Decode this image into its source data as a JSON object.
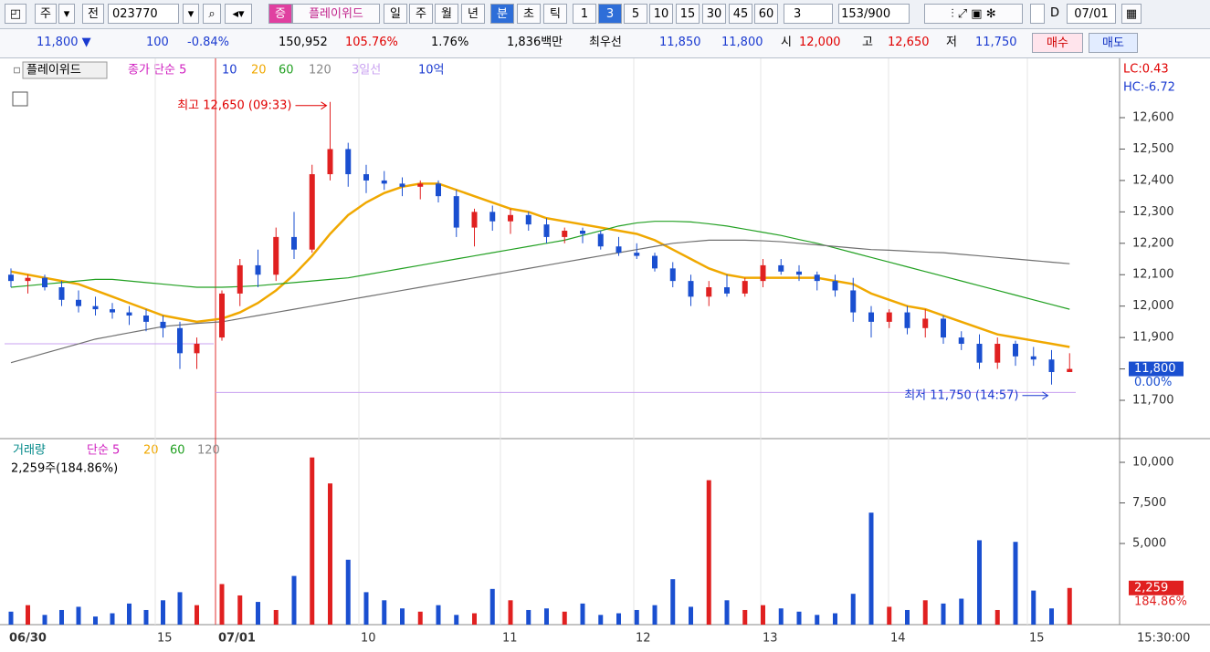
{
  "toolbar": {
    "market": "주",
    "mode": "전",
    "code": "023770",
    "badge": "증",
    "name": "플레이위드",
    "periods": [
      "일",
      "주",
      "월",
      "년",
      "분",
      "초",
      "틱"
    ],
    "intervals": [
      "1",
      "3",
      "5",
      "10",
      "15",
      "30",
      "45",
      "60"
    ],
    "interval_select": "3",
    "count": "153",
    "count_max": "/900",
    "day_flag": "D",
    "date": "07/01"
  },
  "quote": {
    "price": "11,800 ▼",
    "change": "100",
    "change_rate": "-0.84%",
    "volume": "150,952",
    "volume_rate": "105.76%",
    "turnover_rate": "1.76%",
    "amount": "1,836백만",
    "best_label": "최우선",
    "best_ask": "11,850",
    "best_bid": "11,800",
    "open_label": "시",
    "open": "12,000",
    "high_label": "고",
    "high": "12,650",
    "low_label": "저",
    "low": "11,750",
    "buy": "매수",
    "sell": "매도"
  },
  "chart": {
    "legend": {
      "name": "플레이위드",
      "ma_label": "종가 단순 5",
      "ma10": "10",
      "ma20": "20",
      "ma60": "60",
      "ma120": "120",
      "line3": "3일선",
      "amount": "10억"
    },
    "lc": "LC:0.43",
    "hc": "HC:-6.72",
    "ylim": [
      11581,
      12783
    ],
    "yticks": [
      {
        "value": 12600,
        "label": "12,600"
      },
      {
        "value": 12500,
        "label": "12,500"
      },
      {
        "value": 12400,
        "label": "12,400"
      },
      {
        "value": 12300,
        "label": "12,300"
      },
      {
        "value": 12200,
        "label": "12,200"
      },
      {
        "value": 12100,
        "label": "12,100"
      },
      {
        "value": 12000,
        "label": "12,000"
      },
      {
        "value": 11900,
        "label": "11,900"
      },
      {
        "value": 11800,
        "label": "11,800"
      },
      {
        "value": 11700,
        "label": "11,700"
      }
    ],
    "open": [
      12100,
      12080,
      12090,
      12060,
      12020,
      12000,
      11990,
      11980,
      11970,
      11950,
      11930,
      11850,
      11900,
      12040,
      12130,
      12100,
      12220,
      12180,
      12420,
      12500,
      12420,
      12400,
      12390,
      12380,
      12390,
      12350,
      12250,
      12300,
      12270,
      12290,
      12260,
      12220,
      12240,
      12230,
      12190,
      12170,
      12160,
      12120,
      12080,
      12030,
      12060,
      12040,
      12080,
      12130,
      12110,
      12100,
      12080,
      12050,
      11980,
      11950,
      11980,
      11930,
      11960,
      11900,
      11880,
      11820,
      11880,
      11840,
      11830,
      11790
    ],
    "high": [
      12120,
      12100,
      12100,
      12080,
      12050,
      12030,
      12010,
      12000,
      11990,
      11970,
      11950,
      11900,
      12050,
      12150,
      12180,
      12250,
      12300,
      12450,
      12650,
      12520,
      12450,
      12430,
      12410,
      12400,
      12400,
      12370,
      12310,
      12320,
      12310,
      12300,
      12280,
      12250,
      12250,
      12240,
      12220,
      12200,
      12170,
      12140,
      12100,
      12080,
      12100,
      12090,
      12150,
      12150,
      12130,
      12110,
      12100,
      12090,
      12000,
      11990,
      12000,
      11990,
      11970,
      11920,
      11910,
      11900,
      11890,
      11870,
      11860,
      11850
    ],
    "low": [
      12060,
      12040,
      12050,
      12000,
      11980,
      11970,
      11960,
      11940,
      11920,
      11900,
      11800,
      11800,
      11890,
      12000,
      12060,
      12080,
      12150,
      12170,
      12400,
      12380,
      12360,
      12370,
      12350,
      12340,
      12330,
      12220,
      12190,
      12240,
      12230,
      12240,
      12200,
      12200,
      12200,
      12180,
      12160,
      12150,
      12110,
      12060,
      12000,
      12000,
      12030,
      12030,
      12060,
      12100,
      12080,
      12050,
      12030,
      11950,
      11900,
      11930,
      11910,
      11900,
      11880,
      11860,
      11800,
      11800,
      11810,
      11810,
      11750,
      11790
    ],
    "close": [
      12080,
      12090,
      12060,
      12020,
      12000,
      11990,
      11980,
      11970,
      11950,
      11930,
      11850,
      11880,
      12040,
      12130,
      12100,
      12220,
      12180,
      12420,
      12500,
      12420,
      12400,
      12390,
      12380,
      12390,
      12350,
      12250,
      12300,
      12270,
      12290,
      12260,
      12220,
      12240,
      12230,
      12190,
      12170,
      12160,
      12120,
      12080,
      12030,
      12060,
      12040,
      12080,
      12130,
      12110,
      12100,
      12080,
      12050,
      11980,
      11950,
      11980,
      11930,
      11960,
      11900,
      11880,
      11820,
      11880,
      11840,
      11830,
      11790,
      11800
    ],
    "ma_lines": [
      {
        "name": "20",
        "color": "#f0a800",
        "values": [
          12110,
          12100,
          12090,
          12080,
          12070,
          12050,
          12030,
          12010,
          11990,
          11970,
          11960,
          11950,
          11960,
          11980,
          12010,
          12050,
          12100,
          12160,
          12230,
          12290,
          12330,
          12360,
          12380,
          12390,
          12390,
          12370,
          12350,
          12330,
          12310,
          12300,
          12280,
          12270,
          12260,
          12250,
          12240,
          12230,
          12210,
          12180,
          12150,
          12120,
          12100,
          12090,
          12090,
          12090,
          12090,
          12090,
          12080,
          12070,
          12040,
          12020,
          12000,
          11990,
          11970,
          11950,
          11930,
          11910,
          11900,
          11890,
          11880,
          11870
        ]
      },
      {
        "name": "60",
        "color": "#22a022",
        "values": [
          12060,
          12065,
          12070,
          12075,
          12080,
          12085,
          12085,
          12080,
          12075,
          12070,
          12065,
          12060,
          12060,
          12062,
          12065,
          12070,
          12075,
          12080,
          12085,
          12090,
          12100,
          12110,
          12120,
          12130,
          12140,
          12150,
          12160,
          12170,
          12180,
          12190,
          12200,
          12210,
          12225,
          12240,
          12255,
          12265,
          12270,
          12270,
          12268,
          12262,
          12255,
          12245,
          12235,
          12225,
          12212,
          12200,
          12185,
          12170,
          12155,
          12140,
          12125,
          12110,
          12095,
          12080,
          12065,
          12050,
          12035,
          12020,
          12005,
          11990
        ]
      },
      {
        "name": "120",
        "color": "#707070",
        "values": [
          11820,
          11835,
          11850,
          11865,
          11880,
          11895,
          11905,
          11915,
          11925,
          11935,
          11940,
          11945,
          11950,
          11960,
          11970,
          11980,
          11990,
          12000,
          12010,
          12020,
          12030,
          12040,
          12050,
          12060,
          12070,
          12080,
          12090,
          12100,
          12110,
          12120,
          12130,
          12140,
          12150,
          12160,
          12170,
          12180,
          12190,
          12200,
          12205,
          12210,
          12210,
          12210,
          12208,
          12205,
          12200,
          12195,
          12190,
          12185,
          12180,
          12178,
          12175,
          12172,
          12170,
          12165,
          12160,
          12155,
          12150,
          12145,
          12140,
          12135
        ]
      }
    ],
    "line3_levels": [
      11880,
      11725
    ],
    "high_note": "최고 12,650 (09:33)",
    "low_note": "최저 11,750 (14:57)",
    "last_label": "11,800",
    "last_rate": "0.00%",
    "volume_legend": {
      "name": "거래량",
      "ma_label": "단순 5",
      "ma20": "20",
      "ma60": "60",
      "ma120": "120",
      "info": "2,259주(184.86%)"
    },
    "vlim": [
      0,
      11124
    ],
    "vticks": [
      {
        "value": 10000,
        "label": "10,000"
      },
      {
        "value": 7500,
        "label": "7,500"
      },
      {
        "value": 5000,
        "label": "5,000"
      }
    ],
    "volume": [
      800,
      1200,
      600,
      900,
      1100,
      500,
      700,
      1300,
      900,
      1500,
      2000,
      1200,
      2500,
      1800,
      1400,
      900,
      3000,
      10300,
      8700,
      4000,
      2000,
      1500,
      1000,
      800,
      1200,
      600,
      700,
      2200,
      1500,
      900,
      1000,
      800,
      1300,
      600,
      700,
      900,
      1200,
      2800,
      1100,
      8900,
      1500,
      900,
      1200,
      1000,
      800,
      600,
      700,
      1900,
      6900,
      1100,
      900,
      1500,
      1300,
      1600,
      5200,
      900,
      5100,
      2100,
      1000,
      2259
    ],
    "vol_label": "2,259",
    "vol_rate": "184.86%",
    "time_labels": [
      "06/30",
      "15",
      "07/01",
      "10",
      "11",
      "12",
      "13",
      "14",
      "15",
      "15:30:00"
    ]
  }
}
